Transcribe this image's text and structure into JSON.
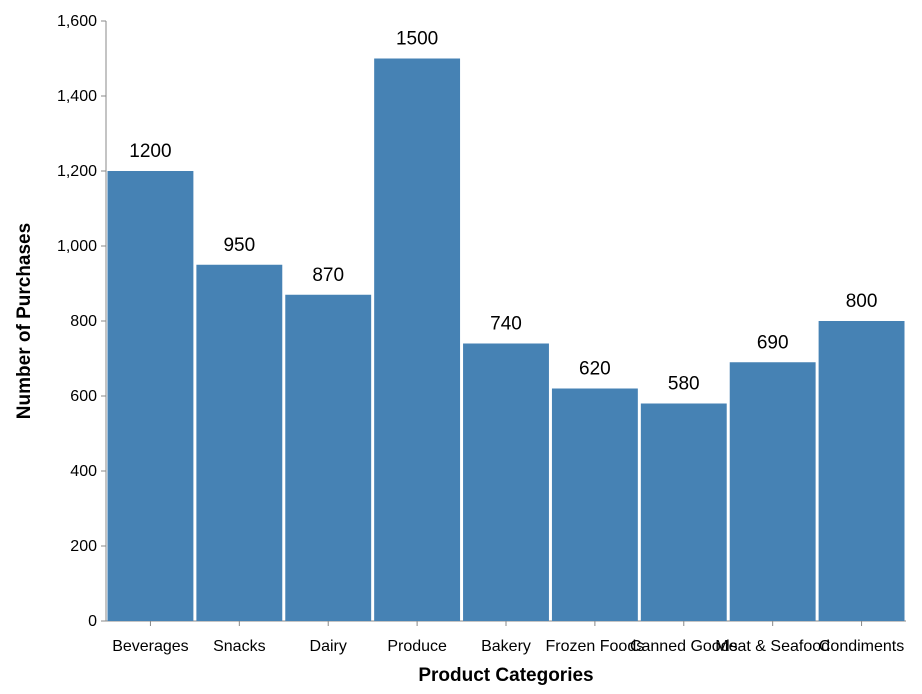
{
  "colors": {
    "bar": "#4682b4",
    "axis": "#888888",
    "text": "#000000"
  },
  "chart_data": {
    "type": "bar",
    "categories": [
      "Beverages",
      "Snacks",
      "Dairy",
      "Produce",
      "Bakery",
      "Frozen Foods",
      "Canned Goods",
      "Meat & Seafood",
      "Condiments"
    ],
    "values": [
      1200,
      950,
      870,
      1500,
      740,
      620,
      580,
      690,
      800
    ],
    "xlabel": "Product Categories",
    "ylabel": "Number of Purchases",
    "ylim": [
      0,
      1600
    ],
    "yticks": [
      0,
      200,
      400,
      600,
      800,
      1000,
      1200,
      1400,
      1600
    ],
    "ytick_labels": [
      "0",
      "200",
      "400",
      "600",
      "800",
      "1,000",
      "1,200",
      "1,400",
      "1,600"
    ],
    "grid": false,
    "legend": "none"
  }
}
